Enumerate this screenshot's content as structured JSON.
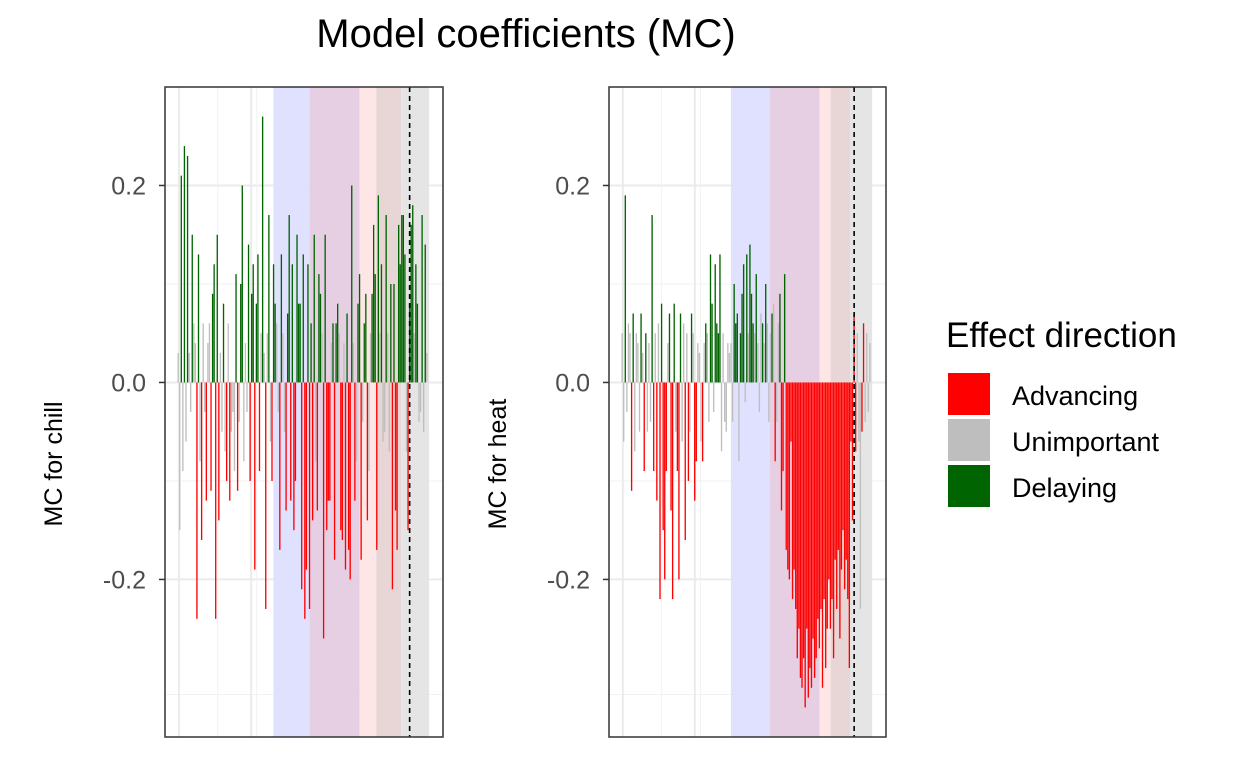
{
  "title": "Model coefficients (MC)",
  "legend": {
    "title": "Effect direction",
    "items": [
      {
        "label": "Advancing",
        "color": "#ff0000"
      },
      {
        "label": "Unimportant",
        "color": "#bebebe"
      },
      {
        "label": "Delaying",
        "color": "#006400"
      }
    ]
  },
  "chart_data": [
    {
      "type": "bar",
      "title": "",
      "ylabel": "MC for chill",
      "xlabel": "",
      "ylim": [
        -0.36,
        0.3
      ],
      "yticks": [
        -0.2,
        0.0,
        0.2
      ],
      "ytick_labels": [
        "-0.2",
        "0.0",
        "0.2"
      ],
      "grid": true,
      "x_tick_labels_shown": false,
      "shaded_periods": [
        {
          "from": 0.39,
          "to": 0.52,
          "color": "#e0e0ff"
        },
        {
          "from": 0.52,
          "to": 0.7,
          "color": "#e6cfe3"
        },
        {
          "from": 0.7,
          "to": 0.76,
          "color": "#ffe6e6"
        },
        {
          "from": 0.76,
          "to": 0.85,
          "color": "#e8d6d6"
        },
        {
          "from": 0.85,
          "to": 0.95,
          "color": "#e5e5e5"
        }
      ],
      "reference_line_x": 0.88,
      "values": [
        0.03,
        -0.15,
        0.21,
        -0.09,
        0.24,
        -0.06,
        0.23,
        0.03,
        -0.03,
        0.15,
        0.06,
        0.04,
        -0.24,
        0.13,
        -0.08,
        -0.16,
        0.06,
        -0.03,
        -0.12,
        0.04,
        0.06,
        -0.11,
        0.09,
        0.12,
        -0.24,
        0.15,
        -0.14,
        0.03,
        -0.05,
        0.08,
        -0.07,
        -0.1,
        0.06,
        -0.12,
        -0.05,
        -0.03,
        -0.09,
        0.11,
        -0.11,
        -0.04,
        0.1,
        0.2,
        -0.08,
        0.04,
        -0.03,
        0.14,
        -0.1,
        0.09,
        0.12,
        -0.19,
        0.08,
        0.13,
        -0.09,
        0.05,
        0.27,
        0.03,
        -0.23,
        0.05,
        0.17,
        -0.06,
        -0.1,
        0.12,
        0.08,
        0.06,
        -0.03,
        -0.17,
        0.13,
        0.05,
        -0.05,
        -0.13,
        0.07,
        0.17,
        -0.12,
        0.12,
        -0.15,
        -0.1,
        0.15,
        0.08,
        0.08,
        -0.21,
        0.13,
        -0.24,
        -0.19,
        0.12,
        -0.23,
        0.06,
        -0.14,
        0.15,
        -0.08,
        -0.13,
        0.11,
        0.09,
        0.05,
        -0.26,
        0.15,
        -0.15,
        -0.12,
        -0.12,
        0.04,
        0.06,
        -0.18,
        0.06,
        0.08,
        0.05,
        -0.15,
        -0.16,
        0.04,
        -0.19,
        0.07,
        -0.17,
        -0.2,
        0.2,
        0.04,
        -0.12,
        -0.08,
        0.08,
        0.11,
        -0.18,
        -0.04,
        0.06,
        0.09,
        -0.14,
        -0.09,
        0.05,
        0.09,
        0.16,
        0.11,
        -0.17,
        0.19,
        0.05,
        0.12,
        -0.06,
        -0.05,
        0.17,
        0.05,
        -0.07,
        0.1,
        -0.21,
        0.1,
        -0.13,
        -0.17,
        0.16,
        0.12,
        0.17,
        0.17,
        0.13,
        -0.07,
        -0.15,
        0.08,
        0.16,
        0.18,
        0.05,
        0.12,
        0.08,
        -0.04,
        -0.03,
        0.17,
        -0.05,
        0.14,
        0.03
      ],
      "colors": [
        "U",
        "U",
        "D",
        "U",
        "D",
        "U",
        "D",
        "U",
        "U",
        "D",
        "U",
        "U",
        "A",
        "D",
        "U",
        "A",
        "U",
        "U",
        "A",
        "U",
        "U",
        "A",
        "D",
        "D",
        "A",
        "D",
        "A",
        "U",
        "U",
        "D",
        "U",
        "A",
        "U",
        "A",
        "U",
        "U",
        "U",
        "D",
        "A",
        "U",
        "D",
        "D",
        "U",
        "U",
        "U",
        "D",
        "A",
        "D",
        "D",
        "A",
        "D",
        "D",
        "A",
        "U",
        "D",
        "U",
        "A",
        "U",
        "D",
        "U",
        "A",
        "D",
        "D",
        "U",
        "U",
        "A",
        "D",
        "U",
        "U",
        "A",
        "D",
        "D",
        "A",
        "D",
        "A",
        "A",
        "D",
        "D",
        "D",
        "A",
        "D",
        "A",
        "A",
        "D",
        "A",
        "D",
        "A",
        "D",
        "U",
        "A",
        "D",
        "D",
        "U",
        "A",
        "D",
        "A",
        "A",
        "A",
        "U",
        "D",
        "A",
        "D",
        "D",
        "U",
        "A",
        "A",
        "U",
        "A",
        "D",
        "A",
        "A",
        "D",
        "U",
        "A",
        "U",
        "D",
        "D",
        "A",
        "U",
        "D",
        "D",
        "A",
        "U",
        "U",
        "D",
        "D",
        "D",
        "A",
        "D",
        "U",
        "D",
        "U",
        "U",
        "D",
        "U",
        "U",
        "D",
        "A",
        "D",
        "A",
        "A",
        "D",
        "D",
        "D",
        "D",
        "D",
        "U",
        "A",
        "D",
        "D",
        "D",
        "U",
        "D",
        "D",
        "U",
        "U",
        "D",
        "U",
        "D",
        "U"
      ]
    },
    {
      "type": "bar",
      "title": "",
      "ylabel": "MC for heat",
      "xlabel": "",
      "ylim": [
        -0.36,
        0.3
      ],
      "yticks": [
        -0.2,
        0.0,
        0.2
      ],
      "ytick_labels": [
        "-0.2",
        "0.0",
        "0.2"
      ],
      "grid": true,
      "x_tick_labels_shown": false,
      "shaded_periods": [
        {
          "from": 0.44,
          "to": 0.58,
          "color": "#e0e0ff"
        },
        {
          "from": 0.58,
          "to": 0.76,
          "color": "#e6cfe3"
        },
        {
          "from": 0.76,
          "to": 0.8,
          "color": "#ffe6e6"
        },
        {
          "from": 0.8,
          "to": 0.87,
          "color": "#e8d6d6"
        },
        {
          "from": 0.87,
          "to": 0.95,
          "color": "#e5e5e5"
        }
      ],
      "reference_line_x": 0.885,
      "values": [
        0.05,
        -0.06,
        0.19,
        -0.03,
        0.06,
        0.05,
        -0.11,
        0.07,
        -0.07,
        0.05,
        0.04,
        -0.05,
        0.07,
        0.03,
        -0.09,
        0.05,
        -0.05,
        0.04,
        -0.04,
        0.17,
        -0.09,
        0.05,
        -0.12,
        0.06,
        -0.22,
        0.08,
        -0.15,
        -0.2,
        -0.09,
        0.04,
        0.07,
        -0.13,
        -0.22,
        0.08,
        -0.05,
        -0.09,
        -0.2,
        0.07,
        -0.06,
        0.06,
        -0.16,
        0.05,
        -0.1,
        -0.05,
        0.07,
        0.05,
        -0.12,
        -0.08,
        0.04,
        0.03,
        -0.06,
        -0.08,
        0.04,
        0.06,
        0.05,
        -0.04,
        0.13,
        0.08,
        -0.03,
        0.12,
        0.06,
        0.05,
        0.13,
        -0.07,
        0.05,
        -0.04,
        -0.05,
        0.04,
        0.03,
        0.04,
        -0.04,
        0.1,
        0.06,
        0.07,
        -0.08,
        0.05,
        0.09,
        0.12,
        -0.02,
        0.13,
        0.05,
        0.14,
        0.09,
        0.06,
        0.05,
        0.11,
        0.04,
        -0.03,
        0.07,
        0.06,
        0.04,
        0.1,
        0.06,
        -0.04,
        0.05,
        0.07,
        0.08,
        -0.08,
        -0.04,
        0.06,
        0.09,
        -0.13,
        -0.09,
        0.11,
        -0.17,
        -0.19,
        -0.2,
        -0.06,
        -0.22,
        -0.19,
        -0.23,
        -0.28,
        -0.25,
        -0.3,
        -0.31,
        -0.28,
        -0.33,
        -0.25,
        -0.32,
        -0.29,
        -0.31,
        -0.26,
        -0.3,
        -0.28,
        -0.24,
        -0.27,
        -0.23,
        -0.31,
        -0.22,
        -0.29,
        -0.25,
        -0.2,
        -0.25,
        -0.22,
        -0.28,
        -0.18,
        -0.23,
        -0.17,
        -0.26,
        -0.19,
        -0.15,
        -0.21,
        -0.18,
        -0.22,
        -0.29,
        -0.06,
        -0.14,
        0.07,
        -0.07,
        0.05,
        -0.06,
        -0.23,
        -0.05,
        0.06,
        -0.04,
        0.05,
        -0.03,
        0.04
      ],
      "colors": [
        "U",
        "U",
        "D",
        "U",
        "U",
        "U",
        "A",
        "D",
        "U",
        "U",
        "U",
        "U",
        "D",
        "U",
        "A",
        "D",
        "U",
        "U",
        "U",
        "D",
        "A",
        "U",
        "A",
        "U",
        "A",
        "D",
        "A",
        "A",
        "A",
        "U",
        "D",
        "A",
        "A",
        "D",
        "U",
        "A",
        "A",
        "D",
        "U",
        "U",
        "A",
        "U",
        "A",
        "U",
        "D",
        "U",
        "A",
        "A",
        "U",
        "U",
        "U",
        "A",
        "U",
        "D",
        "U",
        "U",
        "D",
        "D",
        "U",
        "D",
        "D",
        "D",
        "D",
        "U",
        "U",
        "U",
        "U",
        "U",
        "U",
        "U",
        "U",
        "D",
        "D",
        "D",
        "U",
        "D",
        "D",
        "D",
        "U",
        "D",
        "U",
        "D",
        "D",
        "D",
        "U",
        "D",
        "U",
        "U",
        "U",
        "D",
        "U",
        "D",
        "U",
        "U",
        "U",
        "D",
        "U",
        "A",
        "U",
        "U",
        "D",
        "A",
        "A",
        "D",
        "A",
        "A",
        "A",
        "A",
        "A",
        "A",
        "A",
        "A",
        "A",
        "A",
        "A",
        "A",
        "A",
        "A",
        "A",
        "A",
        "A",
        "A",
        "A",
        "A",
        "A",
        "A",
        "A",
        "A",
        "A",
        "A",
        "A",
        "A",
        "A",
        "A",
        "A",
        "A",
        "A",
        "A",
        "A",
        "A",
        "A",
        "A",
        "A",
        "A",
        "A",
        "A",
        "A",
        "A",
        "A",
        "U",
        "U",
        "U",
        "A",
        "A",
        "U",
        "U",
        "U",
        "U",
        "U"
      ]
    }
  ]
}
